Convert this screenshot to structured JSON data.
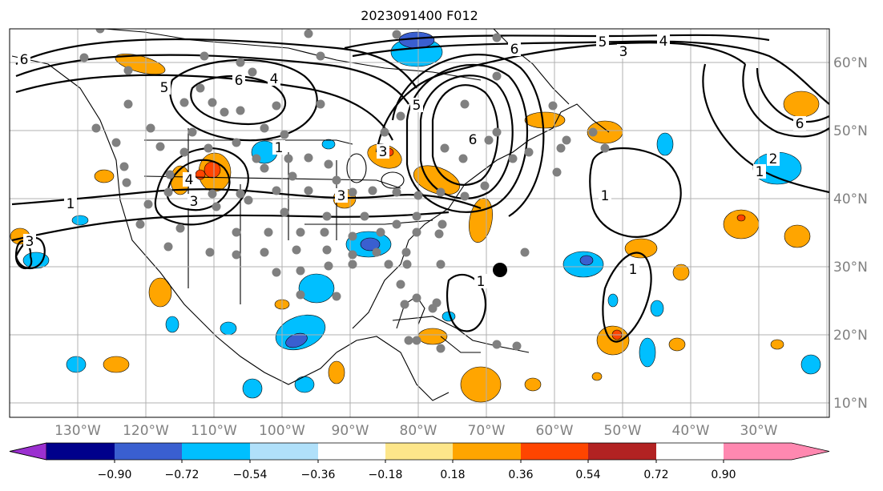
{
  "title": "2023091400 F012",
  "lon_labels": [
    "130°W",
    "120°W",
    "110°W",
    "100°W",
    "90°W",
    "80°W",
    "70°W",
    "60°W",
    "50°W",
    "40°W",
    "30°W"
  ],
  "lat_labels": [
    "60°N",
    "50°N",
    "40°N",
    "30°N",
    "20°N",
    "10°N"
  ],
  "colorbar": {
    "tick_labels": [
      "−0.90",
      "−0.72",
      "−0.54",
      "−0.36",
      "−0.18",
      "0.18",
      "0.36",
      "0.54",
      "0.72",
      "0.90"
    ],
    "colors": [
      "#9b30d0",
      "#00008b",
      "#3a5fd0",
      "#00bfff",
      "#b0e0fa",
      "#ffffff",
      "#fde68a",
      "#ffa500",
      "#ff4500",
      "#b22222",
      "#ff88b0"
    ]
  },
  "contour_labels": [
    "1",
    "2",
    "3",
    "4",
    "5",
    "6"
  ],
  "colors": {
    "grid": "#b0b0b0",
    "tick_text": "#808080",
    "coast": "#000000",
    "contour": "#000000",
    "dot": "#808080",
    "marker": "#000000"
  }
}
